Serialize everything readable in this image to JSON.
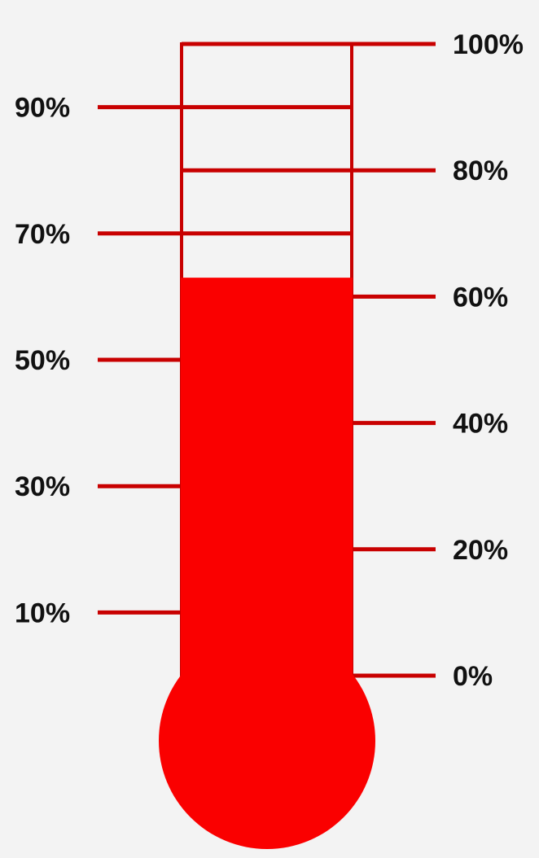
{
  "chart_data": {
    "type": "thermometer",
    "value": 63,
    "scale_min": 0,
    "scale_max": 100,
    "fill_color": "#fa0000",
    "line_color": "#c80000",
    "ticks": [
      {
        "value": 100,
        "label": "100%",
        "side": "right"
      },
      {
        "value": 90,
        "label": "90%",
        "side": "left"
      },
      {
        "value": 80,
        "label": "80%",
        "side": "right"
      },
      {
        "value": 70,
        "label": "70%",
        "side": "left"
      },
      {
        "value": 60,
        "label": "60%",
        "side": "right"
      },
      {
        "value": 50,
        "label": "50%",
        "side": "left"
      },
      {
        "value": 40,
        "label": "40%",
        "side": "right"
      },
      {
        "value": 30,
        "label": "30%",
        "side": "left"
      },
      {
        "value": 20,
        "label": "20%",
        "side": "right"
      },
      {
        "value": 10,
        "label": "10%",
        "side": "left"
      },
      {
        "value": 0,
        "label": "0%",
        "side": "right"
      }
    ]
  }
}
